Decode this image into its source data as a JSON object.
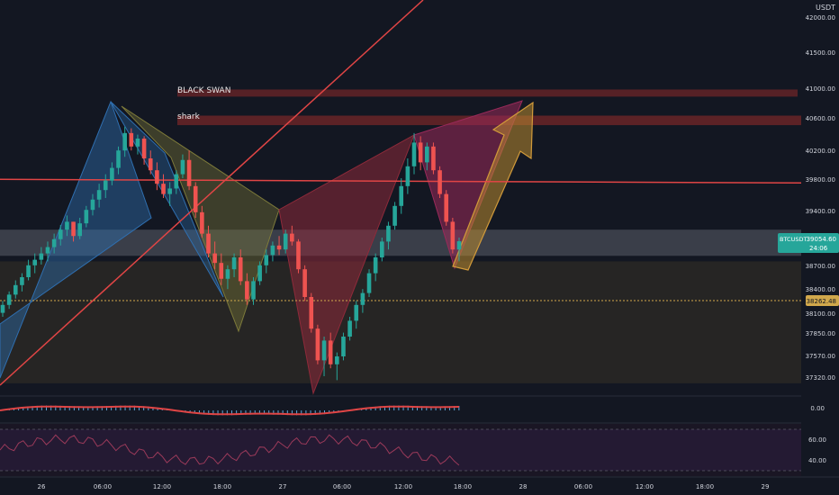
{
  "chart_data": {
    "type": "candlestick",
    "symbol": "BTCUSDT",
    "currency": "USDT",
    "price_axis": {
      "range": [
        37100,
        42100
      ],
      "tick_labels": [
        "41500.00",
        "41000.00",
        "40600.00",
        "40200.00",
        "39800.00",
        "39400.00",
        "38700.00",
        "38400.00",
        "38100.00",
        "37850.00",
        "37570.00",
        "37320.00"
      ],
      "top_label": "USDT",
      "cutoff_label": "42000.00"
    },
    "time_axis": {
      "tick_labels": [
        "26",
        "06:00",
        "12:00",
        "18:00",
        "27",
        "06:00",
        "12:00",
        "18:00",
        "28",
        "06:00",
        "12:00",
        "18:00",
        "29"
      ]
    },
    "current_price": {
      "symbol": "BTCUSDT",
      "value": "39054.60",
      "countdown": "24:06",
      "color": "#26a69a"
    },
    "reference_price": {
      "value": "38262.48",
      "color": "#d1a84c"
    },
    "zones": [
      {
        "label": "BLACK SWAN",
        "from": 40880,
        "to": 40970,
        "color": "#8e2a2a"
      },
      {
        "label": "shark",
        "from": 40520,
        "to": 40640,
        "color": "#8e2a2a"
      },
      {
        "label": "",
        "from": 38870,
        "to": 39200,
        "color": "#6b6f7a"
      },
      {
        "label": "",
        "from": 37260,
        "to": 38800,
        "color": "#3a3326"
      }
    ],
    "horizontal_lines": [
      {
        "price": 39790,
        "color": "#e04545"
      }
    ],
    "harmonic_patterns": [
      {
        "name": "blue",
        "color": "#2f6fb0"
      },
      {
        "name": "olive",
        "color": "#7d7a3a"
      },
      {
        "name": "red",
        "color": "#8e2a3a"
      },
      {
        "name": "magenta",
        "color": "#9a2a5a"
      },
      {
        "name": "arrow",
        "color": "#b98a2f"
      }
    ],
    "candles": [
      [
        38150,
        38300,
        38100,
        38250
      ],
      [
        38250,
        38420,
        38200,
        38380
      ],
      [
        38380,
        38560,
        38330,
        38500
      ],
      [
        38500,
        38650,
        38420,
        38600
      ],
      [
        38600,
        38820,
        38560,
        38750
      ],
      [
        38750,
        38900,
        38650,
        38820
      ],
      [
        38820,
        38980,
        38760,
        38900
      ],
      [
        38900,
        39050,
        38800,
        38980
      ],
      [
        38980,
        39150,
        38900,
        39080
      ],
      [
        39080,
        39260,
        39000,
        39200
      ],
      [
        39200,
        39380,
        39120,
        39300
      ],
      [
        39300,
        39300,
        39050,
        39120
      ],
      [
        39120,
        39350,
        39080,
        39280
      ],
      [
        39280,
        39500,
        39230,
        39450
      ],
      [
        39450,
        39650,
        39380,
        39580
      ],
      [
        39580,
        39780,
        39480,
        39700
      ],
      [
        39700,
        39900,
        39600,
        39820
      ],
      [
        39820,
        40050,
        39760,
        39980
      ],
      [
        39980,
        40250,
        39900,
        40200
      ],
      [
        40200,
        40500,
        40120,
        40420
      ],
      [
        40420,
        40480,
        40200,
        40250
      ],
      [
        40250,
        40400,
        40150,
        40350
      ],
      [
        40350,
        40380,
        40020,
        40100
      ],
      [
        40100,
        40200,
        39900,
        39950
      ],
      [
        39950,
        40050,
        39700,
        39780
      ],
      [
        39780,
        39900,
        39600,
        39650
      ],
      [
        39650,
        39800,
        39500,
        39720
      ],
      [
        39720,
        39950,
        39650,
        39900
      ],
      [
        39900,
        40150,
        39850,
        40080
      ],
      [
        40080,
        40200,
        39700,
        39750
      ],
      [
        39750,
        39800,
        39350,
        39420
      ],
      [
        39420,
        39500,
        39100,
        39150
      ],
      [
        39150,
        39250,
        38850,
        38900
      ],
      [
        38900,
        39050,
        38700,
        38780
      ],
      [
        38780,
        38900,
        38500,
        38580
      ],
      [
        38580,
        38750,
        38450,
        38700
      ],
      [
        38700,
        38900,
        38600,
        38850
      ],
      [
        38850,
        38950,
        38500,
        38550
      ],
      [
        38550,
        38650,
        38250,
        38320
      ],
      [
        38320,
        38600,
        38250,
        38550
      ],
      [
        38550,
        38800,
        38500,
        38750
      ],
      [
        38750,
        38950,
        38650,
        38880
      ],
      [
        38880,
        39050,
        38800,
        39000
      ],
      [
        39000,
        39120,
        38880,
        38950
      ],
      [
        38950,
        39200,
        38900,
        39150
      ],
      [
        39150,
        39250,
        39000,
        39050
      ],
      [
        39050,
        39080,
        38650,
        38700
      ],
      [
        38700,
        38750,
        38300,
        38350
      ],
      [
        38350,
        38400,
        37900,
        37950
      ],
      [
        37950,
        38000,
        37500,
        37550
      ],
      [
        37550,
        37850,
        37350,
        37800
      ],
      [
        37800,
        37900,
        37450,
        37500
      ],
      [
        37500,
        37650,
        37300,
        37600
      ],
      [
        37600,
        37900,
        37550,
        37850
      ],
      [
        37850,
        38100,
        37800,
        38050
      ],
      [
        38050,
        38300,
        37950,
        38250
      ],
      [
        38250,
        38450,
        38150,
        38400
      ],
      [
        38400,
        38700,
        38350,
        38650
      ],
      [
        38650,
        38900,
        38550,
        38850
      ],
      [
        38850,
        39100,
        38800,
        39050
      ],
      [
        39050,
        39300,
        38950,
        39250
      ],
      [
        39250,
        39550,
        39200,
        39500
      ],
      [
        39500,
        39850,
        39400,
        39750
      ],
      [
        39750,
        40100,
        39650,
        40000
      ],
      [
        40000,
        40420,
        39900,
        40300
      ],
      [
        40300,
        40380,
        39950,
        40050
      ],
      [
        40050,
        40300,
        39950,
        40250
      ],
      [
        40250,
        40300,
        39900,
        39950
      ],
      [
        39950,
        40000,
        39600,
        39650
      ],
      [
        39650,
        39700,
        39250,
        39300
      ],
      [
        39300,
        39350,
        38900,
        38950
      ],
      [
        38950,
        39100,
        38800,
        39054
      ]
    ],
    "oscillators": [
      {
        "name": "momentum",
        "tick_labels": [
          "0.00"
        ]
      },
      {
        "name": "rsi",
        "tick_labels": [
          "60.00",
          "40.00"
        ]
      }
    ]
  }
}
